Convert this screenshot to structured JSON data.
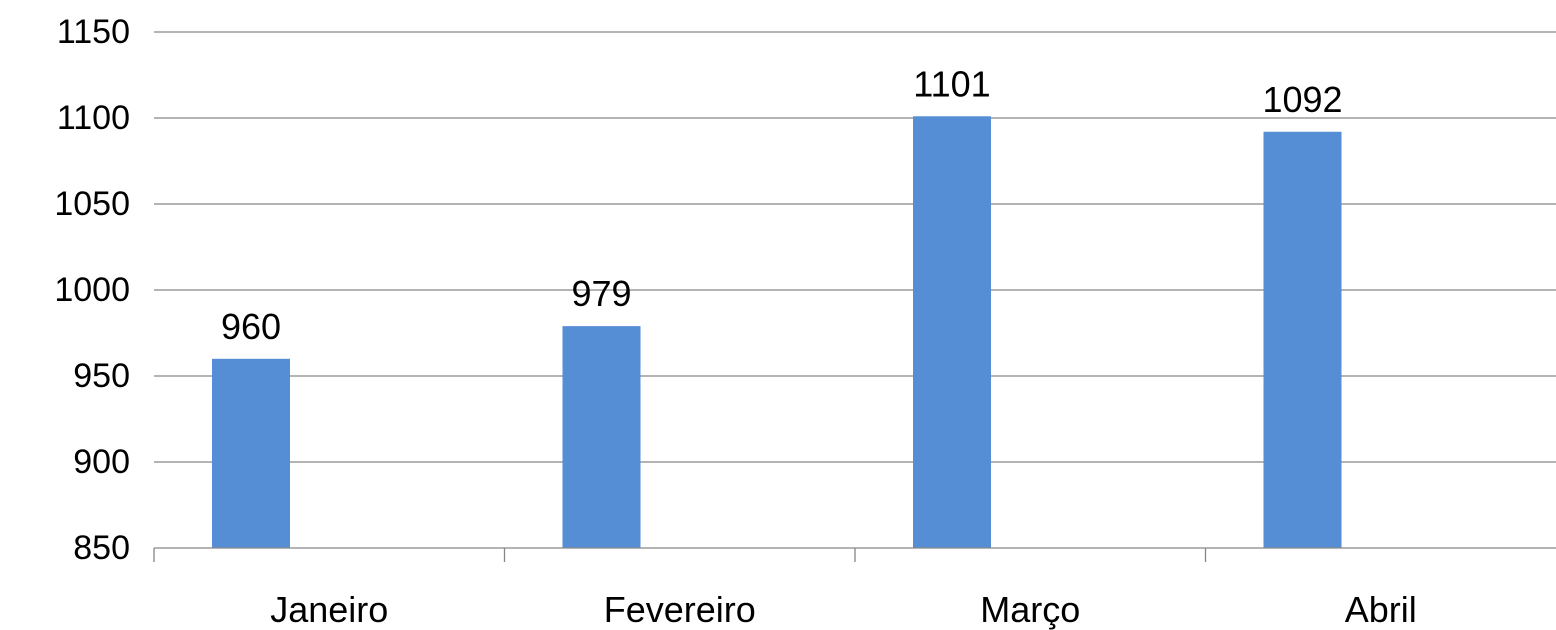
{
  "chart_data": {
    "type": "bar",
    "categories": [
      "Janeiro",
      "Fevereiro",
      "Março",
      "Abril"
    ],
    "values": [
      960,
      979,
      1101,
      1092
    ],
    "data_labels": [
      "960",
      "979",
      "1101",
      "1092"
    ],
    "ylim": [
      850,
      1150
    ],
    "yticks": [
      "850",
      "900",
      "950",
      "1000",
      "1050",
      "1100",
      "1150"
    ],
    "title": "",
    "xlabel": "",
    "ylabel": "",
    "grid": true,
    "legend": "none",
    "colors": {
      "bar": "#558ED5",
      "grid": "#868686",
      "axis": "#868686",
      "text": "#000000"
    }
  }
}
